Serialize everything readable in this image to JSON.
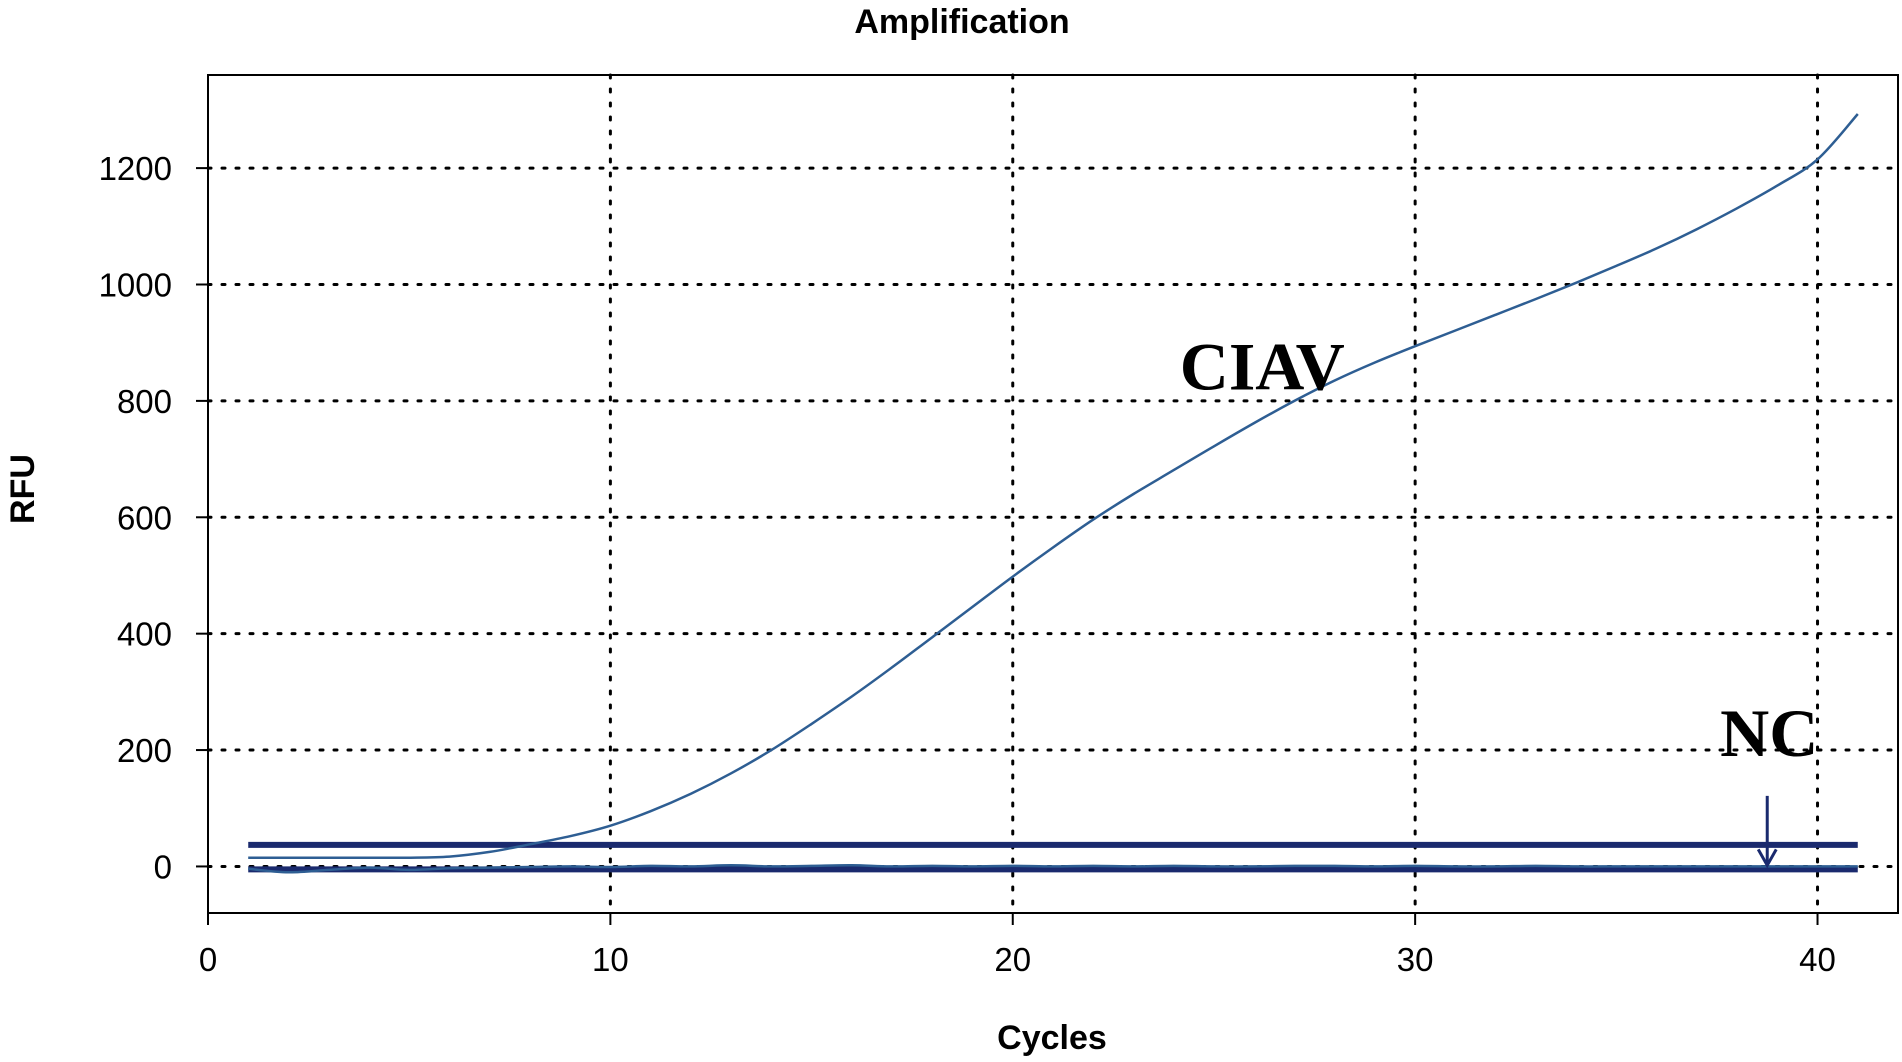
{
  "chart_data": {
    "type": "line",
    "title": "Amplification",
    "xlabel": "Cycles",
    "ylabel": "RFU",
    "xlim": [
      0,
      42
    ],
    "ylim": [
      -80,
      1360
    ],
    "x_ticks": [
      0,
      10,
      20,
      30,
      40
    ],
    "y_ticks": [
      0,
      200,
      400,
      600,
      800,
      1000,
      1200
    ],
    "grid": true,
    "grid_style": "dotted",
    "line_color": "#2e5e93",
    "threshold_color": "#1a2a6e",
    "series": [
      {
        "name": "CIAV",
        "x": [
          1,
          2,
          3,
          4,
          5,
          6,
          7,
          8,
          9,
          10,
          11,
          12,
          13,
          14,
          15,
          16,
          17,
          18,
          19,
          20,
          21,
          22,
          23,
          24,
          25,
          26,
          27,
          28,
          29,
          30,
          31,
          32,
          33,
          34,
          35,
          36,
          37,
          38,
          39,
          40,
          41
        ],
        "y": [
          15,
          15,
          15,
          15,
          15,
          17,
          25,
          38,
          52,
          70,
          95,
          125,
          160,
          200,
          245,
          292,
          342,
          394,
          446,
          498,
          548,
          596,
          640,
          681,
          722,
          762,
          800,
          835,
          866,
          894,
          921,
          948,
          975,
          1003,
          1032,
          1062,
          1095,
          1131,
          1170,
          1215,
          1293
        ]
      },
      {
        "name": "NC",
        "x": [
          1,
          2,
          3,
          4,
          5,
          6,
          7,
          8,
          9,
          10,
          11,
          12,
          13,
          14,
          15,
          16,
          17,
          18,
          19,
          20,
          21,
          22,
          23,
          24,
          25,
          26,
          27,
          28,
          29,
          30,
          31,
          32,
          33,
          34,
          35,
          36,
          37,
          38,
          39,
          40,
          41
        ],
        "y": [
          -4,
          -10,
          -6,
          -2,
          -6,
          -3,
          -2,
          -1,
          0,
          -1,
          1,
          0,
          2,
          0,
          1,
          2,
          0,
          1,
          0,
          1,
          0,
          1,
          0,
          1,
          0,
          0,
          1,
          1,
          0,
          1,
          0,
          0,
          1,
          0,
          0,
          0,
          0,
          0,
          0,
          0,
          0
        ]
      }
    ],
    "threshold_lines": [
      {
        "y": 37,
        "x_start": 1,
        "x_end": 41
      },
      {
        "y": -5,
        "x_start": 1,
        "x_end": 41
      }
    ],
    "annotations": [
      {
        "text": "CIAV",
        "x": 26.2,
        "y": 820
      },
      {
        "text": "NC",
        "x": 38.8,
        "y": 190,
        "arrow_to_y": -5
      }
    ]
  }
}
